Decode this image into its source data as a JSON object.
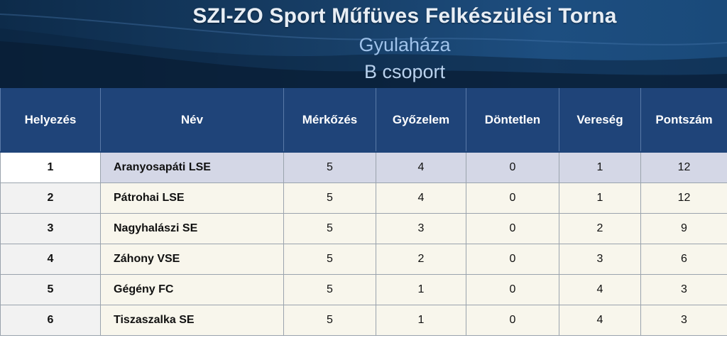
{
  "header": {
    "title": "SZI-ZO Sport Műfüves Felkészülési Torna",
    "subtitle": "Gyulaháza",
    "group": "B csoport"
  },
  "table": {
    "columns": [
      "Helyezés",
      "Név",
      "Mérkőzés",
      "Győzelem",
      "Döntetlen",
      "Vereség",
      "Pontszám"
    ],
    "rows": [
      {
        "rank": "1",
        "name": "Aranyosapáti LSE",
        "played": "5",
        "won": "4",
        "drawn": "0",
        "lost": "1",
        "points": "12"
      },
      {
        "rank": "2",
        "name": "Pátrohai LSE",
        "played": "5",
        "won": "4",
        "drawn": "0",
        "lost": "1",
        "points": "12"
      },
      {
        "rank": "3",
        "name": "Nagyhalászi SE",
        "played": "5",
        "won": "3",
        "drawn": "0",
        "lost": "2",
        "points": "9"
      },
      {
        "rank": "4",
        "name": "Záhony VSE",
        "played": "5",
        "won": "2",
        "drawn": "0",
        "lost": "3",
        "points": "6"
      },
      {
        "rank": "5",
        "name": "Gégény FC",
        "played": "5",
        "won": "1",
        "drawn": "0",
        "lost": "4",
        "points": "3"
      },
      {
        "rank": "6",
        "name": "Tiszaszalka SE",
        "played": "5",
        "won": "1",
        "drawn": "0",
        "lost": "4",
        "points": "3"
      }
    ]
  },
  "colors": {
    "header_bg": "#1f4479",
    "highlight_row": "#d4d7e6",
    "row_bg": "#f8f6ec"
  }
}
